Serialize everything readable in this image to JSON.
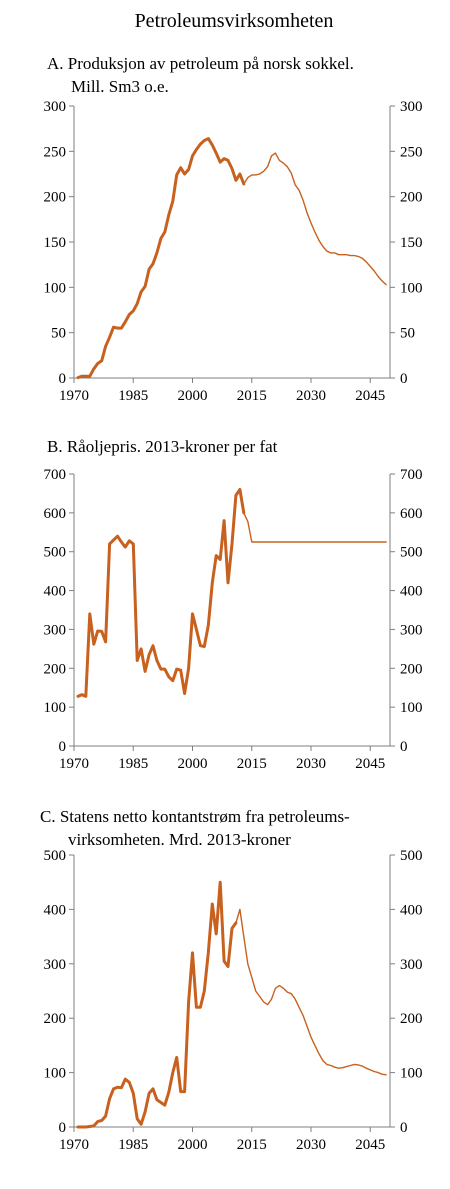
{
  "figure_title": "Petroleumsvirksomheten",
  "panels": [
    {
      "title_lines": [
        "A. Produksjon av petroleum på norsk sokkel.",
        "Mill. Sm3 o.e."
      ]
    },
    {
      "title_lines": [
        "B. Råoljepris. 2013-kroner per fat"
      ]
    },
    {
      "title_lines": [
        "C. Statens netto kontantstrøm fra petroleums-",
        "virksomheten. Mrd. 2013-kroner"
      ]
    }
  ],
  "colors": {
    "line": "#C8601E",
    "axis": "#7f7f7f",
    "text": "#000000"
  },
  "chart_data": [
    {
      "type": "line",
      "title": "A. Produksjon av petroleum på norsk sokkel. Mill. Sm3 o.e.",
      "xlabel": "",
      "ylabel": "",
      "xlim": [
        1970,
        2050
      ],
      "ylim": [
        0,
        300
      ],
      "xticks": [
        1970,
        1985,
        2000,
        2015,
        2030,
        2045
      ],
      "yticks": [
        0,
        50,
        100,
        150,
        200,
        250,
        300
      ],
      "right_axis": true,
      "grid": false,
      "series": [
        {
          "style": "historical",
          "x": [
            1971,
            1972,
            1973,
            1974,
            1975,
            1976,
            1977,
            1978,
            1979,
            1980,
            1981,
            1982,
            1983,
            1984,
            1985,
            1986,
            1987,
            1988,
            1989,
            1990,
            1991,
            1992,
            1993,
            1994,
            1995,
            1996,
            1997,
            1998,
            1999,
            2000,
            2001,
            2002,
            2003,
            2004,
            2005,
            2006,
            2007,
            2008,
            2009,
            2010,
            2011,
            2012,
            2013
          ],
          "y": [
            0.4,
            2,
            2,
            2,
            10,
            16,
            19,
            35,
            45,
            56,
            55,
            55,
            62,
            70,
            74,
            82,
            95,
            101,
            120,
            126,
            138,
            154,
            161,
            180,
            195,
            224,
            232,
            225,
            230,
            245,
            252,
            258,
            262,
            264,
            257,
            248,
            238,
            242,
            240,
            231,
            218,
            225,
            214
          ]
        },
        {
          "style": "projection",
          "x": [
            2013,
            2014,
            2015,
            2016,
            2017,
            2018,
            2019,
            2020,
            2021,
            2022,
            2023,
            2024,
            2025,
            2026,
            2027,
            2028,
            2029,
            2030,
            2031,
            2032,
            2033,
            2034,
            2035,
            2036,
            2037,
            2038,
            2039,
            2040,
            2041,
            2042,
            2043,
            2044,
            2045,
            2046,
            2047,
            2048,
            2049
          ],
          "y": [
            214,
            221,
            224,
            224,
            225,
            228,
            233,
            245,
            248,
            240,
            237,
            233,
            226,
            213,
            207,
            196,
            182,
            171,
            161,
            152,
            145,
            140,
            138,
            138,
            136,
            136,
            136,
            135,
            135,
            134,
            132,
            128,
            123,
            118,
            112,
            107,
            103
          ]
        }
      ]
    },
    {
      "type": "line",
      "title": "B. Råoljepris. 2013-kroner per fat",
      "xlabel": "",
      "ylabel": "",
      "xlim": [
        1970,
        2050
      ],
      "ylim": [
        0,
        700
      ],
      "xticks": [
        1970,
        1985,
        2000,
        2015,
        2030,
        2045
      ],
      "yticks": [
        0,
        100,
        200,
        300,
        400,
        500,
        600,
        700
      ],
      "right_axis": true,
      "grid": false,
      "series": [
        {
          "style": "historical",
          "x": [
            1971,
            1972,
            1973,
            1974,
            1975,
            1976,
            1977,
            1978,
            1979,
            1980,
            1981,
            1982,
            1983,
            1984,
            1985,
            1986,
            1987,
            1988,
            1989,
            1990,
            1991,
            1992,
            1993,
            1994,
            1995,
            1996,
            1997,
            1998,
            1999,
            2000,
            2001,
            2002,
            2003,
            2004,
            2005,
            2006,
            2007,
            2008,
            2009,
            2010,
            2011,
            2012,
            2013
          ],
          "y": [
            128,
            132,
            128,
            340,
            262,
            296,
            295,
            268,
            520,
            530,
            540,
            525,
            512,
            528,
            520,
            220,
            250,
            192,
            235,
            258,
            220,
            198,
            198,
            178,
            168,
            198,
            195,
            135,
            200,
            340,
            300,
            258,
            256,
            310,
            420,
            490,
            480,
            580,
            420,
            520,
            645,
            660,
            600
          ]
        },
        {
          "style": "projection",
          "x": [
            2013,
            2014,
            2015,
            2016,
            2020,
            2025,
            2030,
            2035,
            2040,
            2045,
            2049
          ],
          "y": [
            600,
            578,
            525,
            525,
            525,
            525,
            525,
            525,
            525,
            525,
            525
          ]
        }
      ]
    },
    {
      "type": "line",
      "title": "C. Statens netto kontantstrøm fra petroleumsvirksomheten. Mrd. 2013-kroner",
      "xlabel": "",
      "ylabel": "",
      "xlim": [
        1970,
        2050
      ],
      "ylim": [
        0,
        500
      ],
      "xticks": [
        1970,
        1985,
        2000,
        2015,
        2030,
        2045
      ],
      "yticks": [
        0,
        100,
        200,
        300,
        400,
        500
      ],
      "right_axis": true,
      "grid": false,
      "series": [
        {
          "style": "historical",
          "x": [
            1971,
            1972,
            1973,
            1974,
            1975,
            1976,
            1977,
            1978,
            1979,
            1980,
            1981,
            1982,
            1983,
            1984,
            1985,
            1986,
            1987,
            1988,
            1989,
            1990,
            1991,
            1992,
            1993,
            1994,
            1995,
            1996,
            1997,
            1998,
            1999,
            2000,
            2001,
            2002,
            2003,
            2004,
            2005,
            2006,
            2007,
            2008,
            2009,
            2010,
            2011
          ],
          "y": [
            0,
            0,
            0,
            1,
            2,
            10,
            12,
            20,
            52,
            70,
            73,
            72,
            88,
            82,
            62,
            15,
            5,
            28,
            62,
            70,
            50,
            45,
            40,
            64,
            100,
            128,
            65,
            65,
            230,
            320,
            220,
            220,
            250,
            320,
            410,
            355,
            450,
            305,
            295,
            365,
            375
          ]
        },
        {
          "style": "projection",
          "x": [
            2011,
            2012,
            2013,
            2014,
            2015,
            2016,
            2017,
            2018,
            2019,
            2020,
            2021,
            2022,
            2023,
            2024,
            2025,
            2026,
            2027,
            2028,
            2029,
            2030,
            2031,
            2032,
            2033,
            2034,
            2035,
            2036,
            2037,
            2038,
            2039,
            2040,
            2041,
            2042,
            2043,
            2044,
            2045,
            2046,
            2047,
            2048,
            2049
          ],
          "y": [
            375,
            400,
            350,
            300,
            275,
            250,
            240,
            230,
            225,
            235,
            255,
            260,
            255,
            248,
            245,
            235,
            220,
            205,
            185,
            165,
            150,
            135,
            122,
            115,
            113,
            110,
            108,
            109,
            111,
            113,
            115,
            114,
            112,
            108,
            105,
            102,
            100,
            97,
            96
          ]
        }
      ]
    }
  ]
}
